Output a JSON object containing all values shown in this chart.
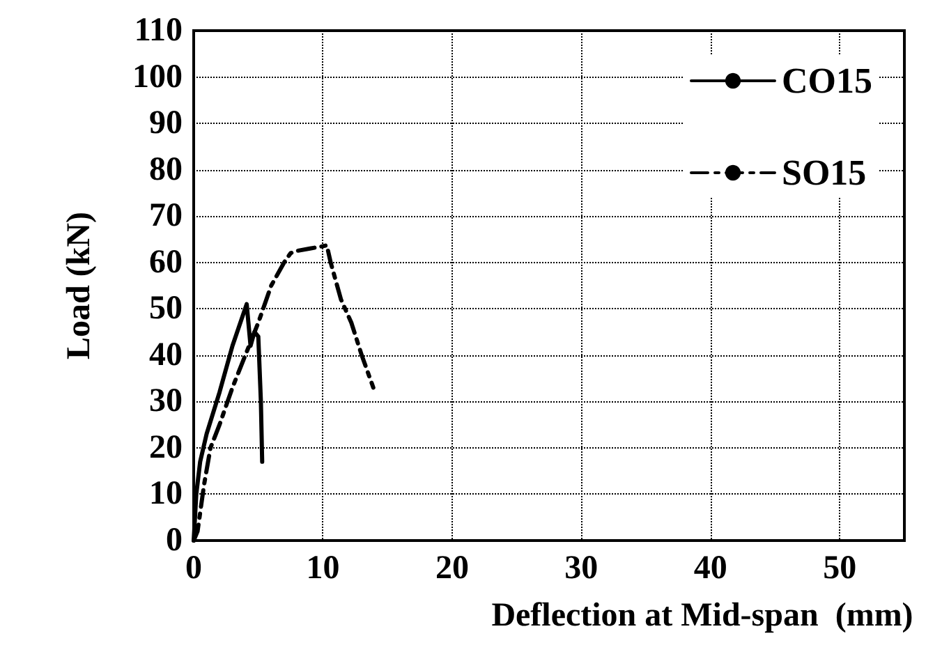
{
  "chart_data": {
    "type": "line",
    "xlabel": "Deflection at Mid-span  (mm)",
    "ylabel": "Load (kN)",
    "xlim": [
      0,
      55
    ],
    "xticks": [
      0,
      10,
      20,
      30,
      40,
      50
    ],
    "ylim": [
      0,
      110
    ],
    "yticks": [
      0,
      10,
      20,
      30,
      40,
      50,
      60,
      70,
      80,
      90,
      100,
      110
    ],
    "grid": true,
    "legend": "top right",
    "marker": "none",
    "series": [
      {
        "name": "CO15",
        "color": "#000000",
        "line_style": "solid",
        "x": [
          0,
          0.2,
          0.5,
          1,
          2,
          3,
          4.1,
          4.4,
          4.7,
          5,
          5.2,
          5.3
        ],
        "values": [
          0,
          10,
          17,
          23,
          32,
          42,
          51,
          42,
          45,
          44,
          30,
          17
        ]
      },
      {
        "name": "SO15",
        "color": "#000000",
        "line_style": "dashed",
        "x": [
          0,
          0.3,
          0.8,
          1.3,
          2,
          3,
          4,
          5,
          6,
          7,
          7.5,
          8,
          9,
          10,
          10.3,
          10.6,
          11.4,
          12.2,
          13,
          13.9
        ],
        "values": [
          0,
          2,
          12,
          20,
          25,
          33,
          40,
          47,
          55,
          60,
          62,
          62.5,
          63,
          63.5,
          63.7,
          60,
          52,
          47,
          40,
          33
        ]
      }
    ]
  }
}
